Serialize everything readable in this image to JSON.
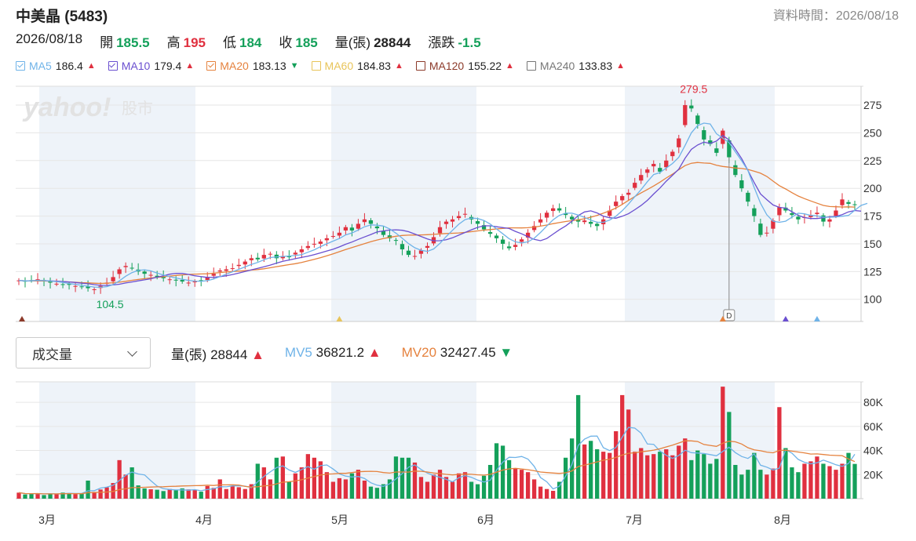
{
  "header": {
    "title": "中美晶 (5483)",
    "datatime_label": "資料時間：2026/08/18",
    "date": "2026/08/18",
    "open_label": "開",
    "open": "185.5",
    "high_label": "高",
    "high": "195",
    "low_label": "低",
    "low": "184",
    "close_label": "收",
    "close": "185",
    "volume_label": "量(張)",
    "volume": "28844",
    "change_label": "漲跌",
    "change": "-1.5"
  },
  "ma_legend": [
    {
      "label": "MA5",
      "value": "186.4",
      "color": "#6fb3e8",
      "checked": true,
      "trend": "up"
    },
    {
      "label": "MA10",
      "value": "179.4",
      "color": "#6a4fd0",
      "checked": true,
      "trend": "up"
    },
    {
      "label": "MA20",
      "value": "183.13",
      "color": "#e5823e",
      "checked": true,
      "trend": "down"
    },
    {
      "label": "MA60",
      "value": "184.83",
      "color": "#e8c45a",
      "checked": false,
      "trend": "up"
    },
    {
      "label": "MA120",
      "value": "155.22",
      "color": "#8c3a2a",
      "checked": false,
      "trend": "up"
    },
    {
      "label": "MA240",
      "value": "133.83",
      "color": "#777777",
      "checked": false,
      "trend": "up"
    }
  ],
  "watermark": {
    "brand": "yahoo!",
    "sub": "股市"
  },
  "volume_panel": {
    "dropdown_label": "成交量",
    "vol_label": "量(張)",
    "vol_value": "28844",
    "vol_trend": "up",
    "mv5_label": "MV5",
    "mv5_value": "36821.2",
    "mv5_trend": "up",
    "mv20_label": "MV20",
    "mv20_value": "32427.45",
    "mv20_trend": "down"
  },
  "colors": {
    "up": "#e0303f",
    "down": "#14a05a",
    "ma5": "#6fb3e8",
    "ma10": "#6a4fd0",
    "ma20": "#e5823e",
    "band": "#eef3f9",
    "grid": "#e6e6e6"
  },
  "chart_data": {
    "type": "candlestick",
    "price_axis": {
      "ticks": [
        100,
        125,
        150,
        175,
        200,
        225,
        250,
        275
      ],
      "range": [
        80,
        292
      ]
    },
    "volume_axis": {
      "ticks": [
        "20K",
        "40K",
        "60K",
        "80K"
      ],
      "values": [
        20000,
        40000,
        60000,
        80000
      ],
      "range": [
        0,
        97000
      ]
    },
    "months": [
      "3月",
      "4月",
      "5月",
      "6月",
      "7月",
      "8月"
    ],
    "annotations": {
      "max_label": "279.5",
      "min_label": "104.5",
      "marker_label": "D"
    },
    "start_price": 117,
    "closes": [
      117,
      116,
      117,
      118,
      116,
      115,
      114,
      113,
      113,
      112,
      111,
      110,
      109,
      112,
      115,
      120,
      127,
      130,
      128,
      125,
      123,
      122,
      120,
      119,
      118,
      117,
      116,
      115,
      116,
      117,
      120,
      123,
      126,
      127,
      128,
      131,
      134,
      137,
      136,
      140,
      141,
      137,
      139,
      138,
      142,
      145,
      148,
      150,
      152,
      155,
      157,
      160,
      165,
      162,
      168,
      172,
      168,
      164,
      158,
      155,
      153,
      145,
      140,
      139,
      144,
      148,
      156,
      165,
      170,
      172,
      175,
      177,
      172,
      168,
      163,
      159,
      155,
      150,
      146,
      149,
      154,
      160,
      166,
      172,
      178,
      182,
      180,
      176,
      172,
      170,
      171,
      168,
      166,
      172,
      180,
      188,
      193,
      196,
      205,
      212,
      217,
      222,
      215,
      225,
      233,
      245,
      275,
      272,
      258,
      244,
      240,
      232,
      252,
      228,
      212,
      200,
      188,
      175,
      158,
      160,
      171,
      183,
      180,
      176,
      172,
      174,
      176,
      178,
      170,
      172,
      180,
      190,
      186,
      185
    ],
    "volumes": [
      5000,
      3500,
      4000,
      4500,
      3000,
      3800,
      4200,
      5000,
      4600,
      3800,
      4000,
      15000,
      5600,
      7600,
      9400,
      13000,
      32000,
      20000,
      26000,
      11000,
      8500,
      7800,
      7400,
      6300,
      8000,
      7000,
      8500,
      7700,
      7100,
      5800,
      10500,
      9000,
      16000,
      8000,
      10500,
      9500,
      8000,
      12000,
      29000,
      26000,
      16000,
      34000,
      35000,
      14000,
      21000,
      26000,
      37000,
      34000,
      31000,
      22000,
      14000,
      17000,
      16000,
      21000,
      24000,
      15000,
      10000,
      9000,
      12000,
      16000,
      35000,
      34000,
      34000,
      30000,
      18000,
      14000,
      20000,
      24000,
      18000,
      14000,
      21000,
      22000,
      14000,
      12000,
      19000,
      28000,
      46000,
      44000,
      32000,
      25000,
      24000,
      22000,
      16000,
      10000,
      8000,
      6500,
      14000,
      34000,
      50000,
      86000,
      45000,
      48000,
      41000,
      39000,
      38000,
      56000,
      86000,
      74000,
      39000,
      42000,
      36000,
      37000,
      39000,
      41000,
      36000,
      44000,
      50000,
      32000,
      40000,
      37000,
      29000,
      33000,
      93000,
      72000,
      28000,
      20000,
      24000,
      38000,
      24000,
      20000,
      25000,
      76000,
      42000,
      26000,
      22000,
      29000,
      31000,
      35000,
      29000,
      27000,
      24000,
      29000,
      38000,
      28844
    ],
    "ma5": [
      117,
      116.5,
      116.7,
      117,
      116.8,
      116.4,
      116,
      115.2,
      114.2,
      113.4,
      112.6,
      111.8,
      111,
      110.8,
      111.4,
      113.2,
      116.6,
      120.8,
      124,
      126,
      126.6,
      125.6,
      123.6,
      121.8,
      120.4,
      119.2,
      118,
      117,
      116.4,
      116.2,
      116.8,
      118.2,
      120.4,
      122.6,
      124.8,
      127,
      129.2,
      131.4,
      133.2,
      135.6,
      137.6,
      138.2,
      138.6,
      139,
      139.4,
      140.2,
      142.4,
      144.6,
      147.4,
      150,
      152.4,
      154.8,
      158,
      159.8,
      162.4,
      165.4,
      167,
      166.8,
      166,
      163.4,
      159.6,
      155,
      150.2,
      146.4,
      144.2,
      143.2,
      145.4,
      150.4,
      156.6,
      162.2,
      167.6,
      171.8,
      173.2,
      172.8,
      171,
      167.8,
      163.4,
      159,
      154.6,
      151.8,
      150.8,
      151.8,
      155,
      160.2,
      166,
      171.6,
      175.6,
      177.6,
      177.6,
      176,
      173.8,
      171.4,
      169.4,
      169.4,
      171.4,
      174.8,
      179.8,
      185.8,
      192.4,
      198.8,
      206,
      212.4,
      214.2,
      218.2,
      222.4,
      228,
      238.6,
      250,
      256.6,
      258.8,
      258,
      249.2,
      245.2,
      241.2,
      232.8,
      224.8,
      216,
      200.6,
      186.6,
      176.2,
      170.4,
      169.4,
      170.4,
      174,
      177.6,
      177,
      175.6,
      175.2,
      174,
      174,
      174.2,
      174.8,
      175.6,
      180.2,
      184.6,
      186.4
    ],
    "ma10": [
      117,
      116.5,
      116.7,
      117,
      116.8,
      116.5,
      116.3,
      115.9,
      115.6,
      115.1,
      114.5,
      114,
      113.2,
      112.6,
      112.5,
      112.9,
      113.6,
      114.7,
      115.6,
      116.6,
      117.5,
      118.5,
      119.9,
      121.1,
      122.6,
      123.4,
      123.3,
      122.4,
      121.2,
      120.4,
      119.7,
      119.8,
      120.4,
      121.2,
      122.3,
      123.6,
      125.1,
      126.6,
      127.9,
      129.3,
      130.8,
      132.6,
      134.3,
      135.4,
      136.6,
      137.7,
      138.8,
      140.3,
      141.8,
      143.5,
      145.1,
      147.2,
      149.6,
      151.6,
      154,
      156.2,
      158.4,
      160.7,
      161.6,
      162.4,
      162.6,
      162.2,
      160.9,
      158.8,
      156.6,
      154.4,
      152.7,
      152.8,
      153.6,
      155.4,
      157.8,
      160.2,
      162.6,
      164.8,
      166.2,
      166.2,
      165.4,
      164.6,
      163.8,
      161.2,
      159,
      156.4,
      154,
      152.8,
      154.8,
      158.7,
      162.6,
      166.1,
      170.4,
      175.5,
      178.7,
      179.7,
      177.8,
      174.9,
      173.5,
      173.1,
      174.8,
      177.1,
      180.7,
      184.5,
      189.2,
      194.9,
      200.3,
      206.4,
      211.8,
      217.3,
      227.1,
      235.1,
      239.1,
      241.6,
      240.4,
      242.6,
      247.6,
      243.6,
      235.3,
      226.8,
      216.1,
      205.1,
      195,
      189.8,
      185,
      182.8,
      182.2,
      178.9,
      175.7,
      173.6,
      172.8,
      172.8,
      173.5,
      174.4,
      174.7,
      176.3,
      178.8,
      180,
      179.4
    ],
    "ma20": [
      117,
      116.6,
      116.5,
      116.6,
      116.5,
      116.3,
      116.1,
      115.8,
      115.6,
      115.3,
      115,
      114.8,
      114.5,
      114.3,
      114.5,
      114.9,
      115.4,
      116.2,
      117.1,
      117.9,
      118.6,
      119.2,
      119.8,
      120.3,
      120.9,
      121.5,
      122,
      122.4,
      122.7,
      122.8,
      123,
      123.5,
      124.1,
      124.6,
      125,
      125.4,
      125.8,
      126.3,
      126.8,
      127.5,
      128.4,
      129.4,
      130.3,
      131.2,
      132.1,
      133.2,
      134.6,
      136,
      137.5,
      139.2,
      141,
      142.9,
      144.8,
      146.6,
      148.4,
      150.2,
      151.9,
      153.4,
      154.7,
      155.8,
      156.8,
      157.5,
      157.8,
      157.9,
      158,
      158.2,
      158.5,
      158.9,
      159.3,
      159.5,
      159.8,
      160.3,
      160.9,
      161.6,
      162.3,
      162.8,
      163.4,
      163.9,
      164.4,
      164.4,
      164.3,
      164.5,
      165.1,
      165.9,
      166.9,
      168.1,
      169.1,
      170.1,
      170.9,
      171.6,
      172.6,
      174,
      175.6,
      177.6,
      179.7,
      182.2,
      185.5,
      189.1,
      192.6,
      195.8,
      198.9,
      202.1,
      205.6,
      209.3,
      212.8,
      216.8,
      220.5,
      222.6,
      223.3,
      222.8,
      222.5,
      220.8,
      219.7,
      219.1,
      218.3,
      217.9,
      217,
      215.4,
      213.6,
      210.7,
      206.5,
      202.4,
      199.4,
      196.1,
      193.1,
      190.7,
      188.6,
      186.6,
      184.6,
      183.6,
      183.4,
      183.2,
      183.3,
      183.13
    ],
    "mv5": [
      5000,
      4250,
      4167,
      4250,
      4000,
      4160,
      3900,
      4100,
      4520,
      4280,
      4280,
      6500,
      6640,
      8800,
      9600,
      11100,
      15100,
      19400,
      22100,
      20500,
      19700,
      14900,
      10400,
      8300,
      7600,
      7200,
      7300,
      7000,
      7500,
      6600,
      7600,
      8200,
      9900,
      9800,
      10600,
      10600,
      10400,
      9200,
      14000,
      18500,
      22200,
      25800,
      27200,
      23800,
      21800,
      24200,
      26600,
      24400,
      27400,
      28000,
      24600,
      20600,
      18700,
      18000,
      18400,
      16800,
      13200,
      11200,
      10200,
      12400,
      16400,
      20800,
      26200,
      28000,
      24200,
      21200,
      19200,
      17800,
      16000,
      14000,
      17400,
      19200,
      17800,
      15400,
      13800,
      15300,
      23700,
      30400,
      34400,
      34200,
      35000,
      32900,
      26800,
      17600,
      14000,
      8100,
      10300,
      18800,
      28500,
      44300,
      49500,
      51900,
      52000,
      42300,
      39900,
      42500,
      51100,
      59200,
      58600,
      54400,
      45400,
      45100,
      39600,
      36000,
      33400,
      35900,
      40200,
      38200,
      37900,
      37500,
      36600,
      35600,
      39200,
      42800,
      38200,
      35000,
      33400,
      37200,
      27800,
      26200,
      23800,
      25300,
      40600,
      37800,
      32600,
      30200,
      28900,
      29800,
      32000,
      30200,
      28100,
      26800,
      29200,
      36821
    ]
  }
}
